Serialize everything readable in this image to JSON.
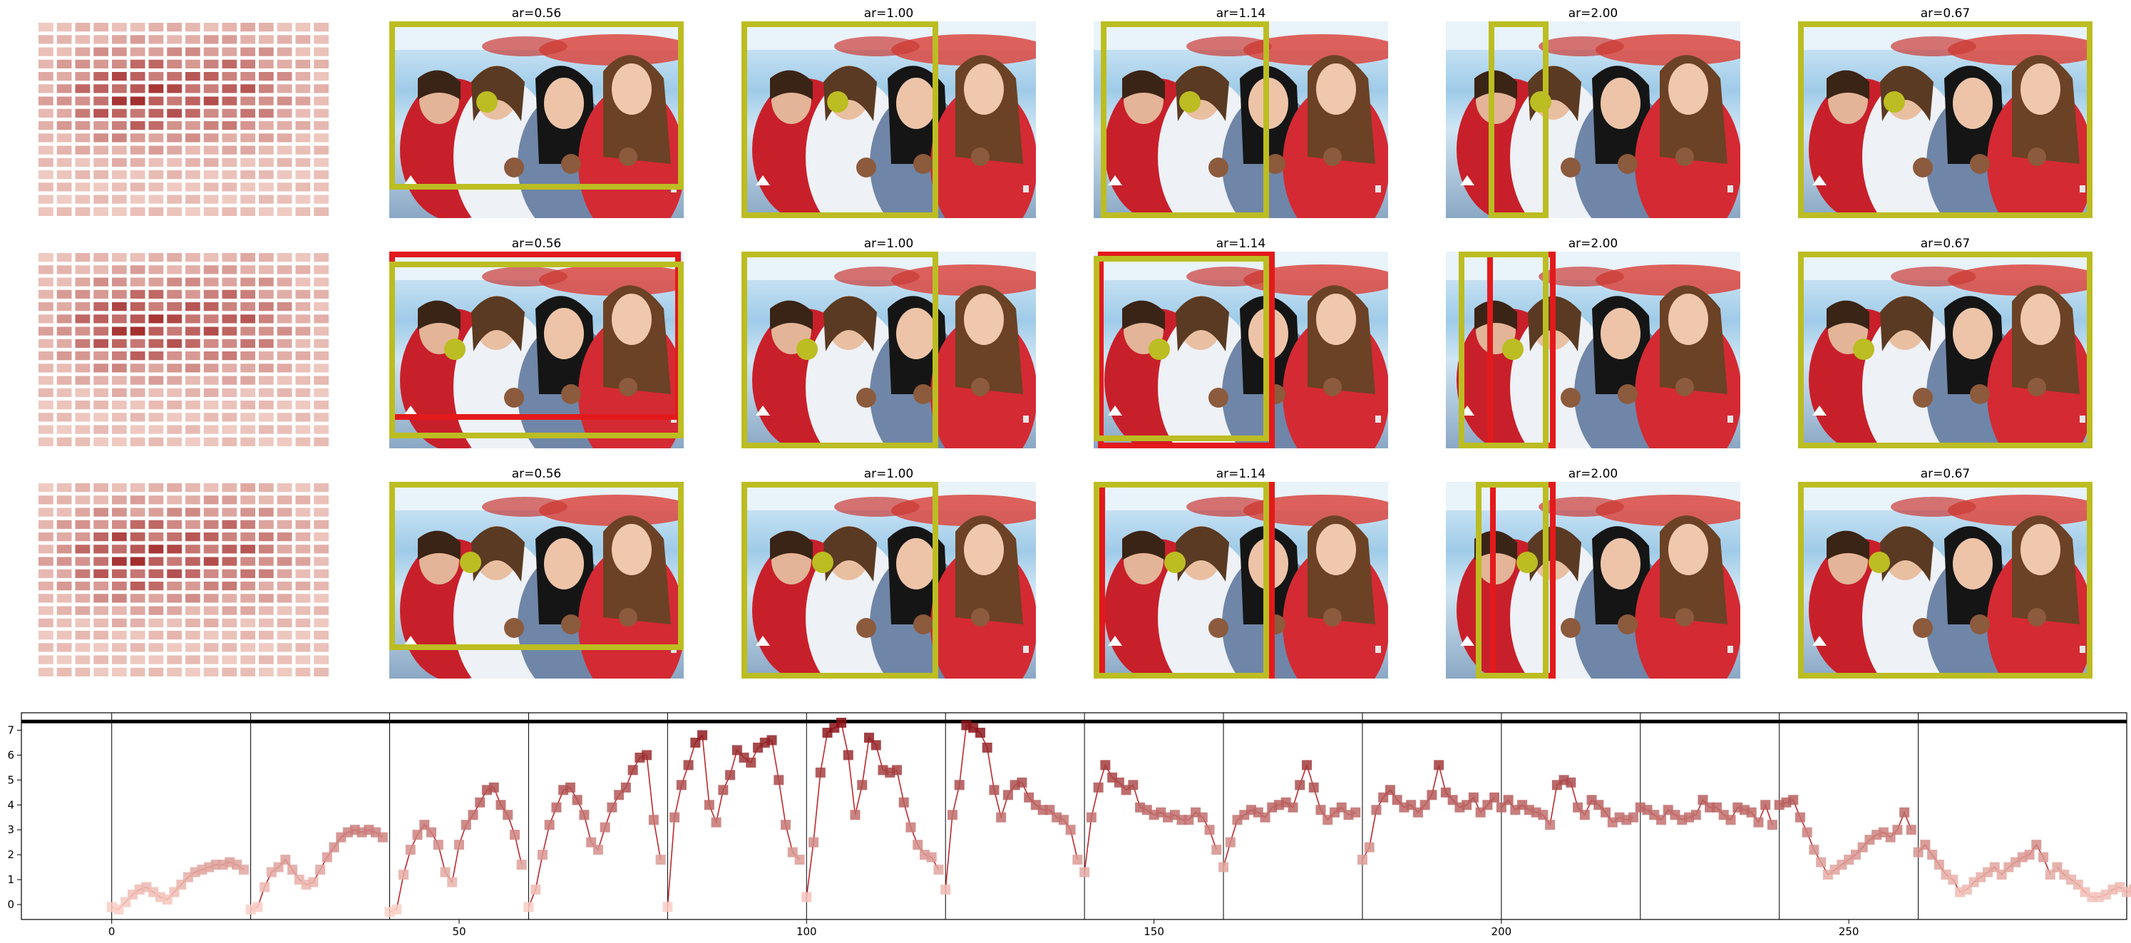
{
  "colors": {
    "box_yellow": "#bcbd22",
    "box_red": "#e31a1c",
    "line": "#c0282c",
    "axis": "#000000",
    "photo_bg_sky": "#a6cbe6",
    "photo_bg_red": "#d43a3a"
  },
  "panels": {
    "rows": 3,
    "heatmap_grid": 16,
    "titles": [
      "ar=0.56",
      "ar=1.00",
      "ar=1.14",
      "ar=2.00",
      "ar=0.67"
    ],
    "image_content": "photo"
  },
  "chart_data": {
    "type": "line",
    "title": "",
    "xlabel": "",
    "ylabel": "",
    "xlim": [
      -13,
      290
    ],
    "ylim": [
      -0.6,
      7.7
    ],
    "xticks": [
      0,
      50,
      100,
      150,
      200,
      250
    ],
    "yticks": [
      0,
      1,
      2,
      3,
      4,
      5,
      6,
      7
    ],
    "vlines": [
      0,
      20,
      40,
      60,
      80,
      100,
      120,
      140,
      160,
      180,
      200,
      220,
      240,
      260
    ],
    "hline": 7.35,
    "segments": [
      [
        -0.1,
        -0.2,
        0.1,
        0.4,
        0.6,
        0.7,
        0.5,
        0.3,
        0.2,
        0.5,
        0.8,
        1.1,
        1.3,
        1.4,
        1.5,
        1.6,
        1.6,
        1.7,
        1.6,
        1.4
      ],
      [
        -0.2,
        -0.1,
        0.7,
        1.3,
        1.5,
        1.8,
        1.4,
        1.0,
        0.8,
        0.9,
        1.4,
        1.9,
        2.3,
        2.7,
        2.9,
        3.0,
        2.9,
        3.0,
        2.9,
        2.7
      ],
      [
        -0.3,
        -0.2,
        1.2,
        2.2,
        2.8,
        3.2,
        2.9,
        2.4,
        1.3,
        0.9,
        2.4,
        3.2,
        3.6,
        4.1,
        4.6,
        4.7,
        4.0,
        3.6,
        2.8,
        1.6
      ],
      [
        -0.1,
        0.6,
        2.0,
        3.2,
        3.9,
        4.6,
        4.7,
        4.2,
        3.6,
        2.5,
        2.2,
        3.1,
        3.9,
        4.4,
        4.7,
        5.4,
        5.9,
        6.0,
        3.4,
        1.8
      ],
      [
        -0.1,
        3.5,
        4.8,
        5.6,
        6.5,
        6.8,
        4.0,
        3.3,
        4.6,
        5.2,
        6.2,
        5.9,
        5.7,
        6.3,
        6.5,
        6.6,
        5.0,
        3.2,
        2.1,
        1.8
      ],
      [
        0.3,
        2.5,
        5.3,
        6.9,
        7.1,
        7.3,
        6.0,
        3.6,
        4.8,
        6.7,
        6.4,
        5.4,
        5.3,
        5.4,
        4.1,
        3.1,
        2.4,
        2.0,
        1.9,
        1.4
      ],
      [
        0.6,
        3.6,
        4.8,
        7.2,
        7.1,
        6.9,
        6.3,
        4.6,
        3.5,
        4.4,
        4.8,
        4.9,
        4.3,
        4.0,
        3.8,
        3.8,
        3.5,
        3.4,
        3.0,
        1.8
      ],
      [
        1.3,
        3.5,
        4.7,
        5.6,
        5.1,
        4.9,
        4.6,
        4.8,
        3.9,
        3.8,
        3.6,
        3.7,
        3.5,
        3.6,
        3.4,
        3.4,
        3.7,
        3.5,
        3.0,
        2.2
      ],
      [
        1.5,
        2.5,
        3.4,
        3.6,
        3.8,
        3.7,
        3.5,
        3.9,
        4.0,
        4.1,
        3.9,
        4.8,
        5.6,
        4.7,
        3.8,
        3.4,
        3.7,
        3.9,
        3.6,
        3.7
      ],
      [
        1.8,
        2.3,
        3.8,
        4.3,
        4.6,
        4.2,
        3.9,
        4.0,
        3.7,
        4.0,
        4.4,
        5.6,
        4.5,
        4.2,
        3.9,
        4.0,
        4.3,
        3.7,
        4.0,
        4.3
      ],
      [
        3.9,
        4.2,
        3.8,
        4.0,
        3.8,
        3.7,
        3.6,
        3.2,
        4.8,
        5.0,
        4.9,
        3.9,
        3.6,
        4.2,
        4.0,
        3.7,
        3.3,
        3.5,
        3.4,
        3.5
      ],
      [
        3.9,
        3.8,
        3.6,
        3.4,
        3.8,
        3.6,
        3.4,
        3.5,
        3.6,
        4.2,
        3.9,
        3.9,
        3.6,
        3.4,
        3.9,
        3.8,
        3.7,
        3.3,
        4.0,
        3.2
      ],
      [
        4.0,
        4.1,
        4.2,
        3.5,
        2.9,
        2.2,
        1.7,
        1.2,
        1.4,
        1.6,
        1.8,
        2.0,
        2.3,
        2.6,
        2.8,
        2.9,
        2.7,
        3.0,
        3.7,
        3.0
      ],
      [
        2.1,
        2.4,
        2.0,
        1.6,
        1.2,
        1.0,
        0.5,
        0.6,
        0.9,
        1.1,
        1.3,
        1.5,
        1.2,
        1.5,
        1.7,
        1.9,
        2.0,
        2.4,
        1.9,
        1.2
      ],
      [
        1.5,
        1.2,
        1.0,
        0.8,
        0.5,
        0.3,
        0.3,
        0.4,
        0.6,
        0.7,
        0.5,
        0.6,
        0.8,
        0.9,
        0.8,
        0.9,
        0.8,
        0.7,
        0.7,
        0.6
      ]
    ]
  }
}
